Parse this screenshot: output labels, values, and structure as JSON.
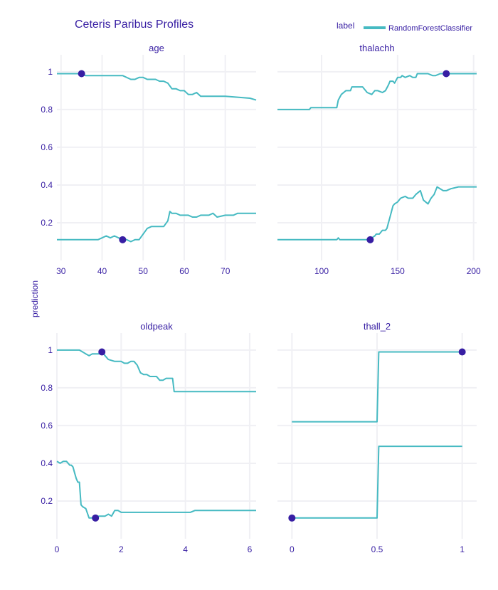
{
  "colors": {
    "text": "#371ea3",
    "line": "#46bac2",
    "point": "#371ea3",
    "grid": "#f0f0f4"
  },
  "chart_data": {
    "type": "line",
    "title": "Ceteris Paribus Profiles",
    "legend": {
      "title": "label",
      "entries": [
        "RandomForestClassifier"
      ],
      "placement": "top-right"
    },
    "ylabel": "prediction",
    "ylim": [
      0,
      1.09
    ],
    "grid": true,
    "panels": [
      {
        "name": "age",
        "xlim": [
          29,
          77.5
        ],
        "xticks": [
          30,
          40,
          50,
          60,
          70
        ],
        "series": [
          {
            "x": [
              29,
              34,
              35,
              36,
              37,
              38,
              39,
              40,
              45,
              47,
              48,
              49,
              50,
              51,
              52,
              53,
              54,
              55,
              56,
              57,
              58,
              59,
              60,
              61,
              62,
              63,
              64,
              65,
              70,
              76,
              77.5
            ],
            "y": [
              0.99,
              0.99,
              0.99,
              0.98,
              0.98,
              0.98,
              0.98,
              0.98,
              0.98,
              0.96,
              0.96,
              0.97,
              0.97,
              0.96,
              0.96,
              0.96,
              0.95,
              0.95,
              0.94,
              0.91,
              0.91,
              0.9,
              0.9,
              0.88,
              0.88,
              0.89,
              0.87,
              0.87,
              0.87,
              0.86,
              0.85
            ]
          },
          {
            "x": [
              29,
              39,
              40,
              41,
              42,
              43,
              44,
              45,
              46,
              47,
              48,
              49,
              50,
              51,
              52,
              53,
              54,
              55,
              56,
              56.5,
              57,
              58,
              59,
              60,
              61,
              62,
              63,
              64,
              65,
              66,
              67,
              68,
              70,
              72,
              73,
              77.5
            ],
            "y": [
              0.11,
              0.11,
              0.12,
              0.13,
              0.12,
              0.13,
              0.12,
              0.11,
              0.11,
              0.1,
              0.11,
              0.11,
              0.14,
              0.17,
              0.18,
              0.18,
              0.18,
              0.18,
              0.21,
              0.26,
              0.25,
              0.25,
              0.24,
              0.24,
              0.24,
              0.23,
              0.23,
              0.24,
              0.24,
              0.24,
              0.25,
              0.23,
              0.24,
              0.24,
              0.25,
              0.25
            ]
          }
        ],
        "points": [
          {
            "x": 35,
            "y": 0.99
          },
          {
            "x": 45,
            "y": 0.11
          }
        ]
      },
      {
        "name": "thalachh",
        "xlim": [
          71,
          202
        ],
        "xticks": [
          100,
          150,
          200
        ],
        "series": [
          {
            "x": [
              71,
              92,
              93,
              103,
              109,
              110,
              111,
              113,
              116,
              119,
              120,
              127,
              128,
              130,
              133,
              135,
              137,
              140,
              142,
              144,
              145,
              147,
              148,
              150,
              152,
              153,
              155,
              158,
              160,
              162,
              163,
              166,
              170,
              173,
              175,
              178,
              182,
              185,
              202
            ],
            "y": [
              0.8,
              0.8,
              0.81,
              0.81,
              0.81,
              0.81,
              0.85,
              0.88,
              0.9,
              0.9,
              0.92,
              0.92,
              0.91,
              0.89,
              0.88,
              0.9,
              0.9,
              0.89,
              0.9,
              0.93,
              0.95,
              0.95,
              0.94,
              0.97,
              0.97,
              0.98,
              0.97,
              0.98,
              0.97,
              0.97,
              0.99,
              0.99,
              0.99,
              0.98,
              0.98,
              0.99,
              0.99,
              0.99,
              0.99
            ]
          },
          {
            "x": [
              71,
              80,
              90,
              100,
              109,
              110,
              111,
              112,
              120,
              125,
              130,
              132,
              133,
              135,
              136,
              138,
              140,
              142,
              143,
              144,
              145,
              147,
              148,
              150,
              152,
              155,
              157,
              160,
              162,
              165,
              167,
              170,
              172,
              174,
              176,
              180,
              182,
              185,
              190,
              195,
              202
            ],
            "y": [
              0.11,
              0.11,
              0.11,
              0.11,
              0.11,
              0.11,
              0.12,
              0.11,
              0.11,
              0.11,
              0.11,
              0.11,
              0.12,
              0.13,
              0.14,
              0.14,
              0.16,
              0.16,
              0.17,
              0.2,
              0.23,
              0.29,
              0.3,
              0.31,
              0.33,
              0.34,
              0.33,
              0.33,
              0.35,
              0.37,
              0.32,
              0.3,
              0.33,
              0.35,
              0.39,
              0.37,
              0.37,
              0.38,
              0.39,
              0.39,
              0.39
            ]
          }
        ],
        "points": [
          {
            "x": 182,
            "y": 0.99
          },
          {
            "x": 132,
            "y": 0.11
          }
        ]
      },
      {
        "name": "oldpeak",
        "xlim": [
          0,
          6.2
        ],
        "xticks": [
          0,
          2,
          4,
          6
        ],
        "series": [
          {
            "x": [
              0,
              0.7,
              0.8,
              0.9,
              1.0,
              1.1,
              1.2,
              1.3,
              1.4,
              1.5,
              1.6,
              1.8,
              2.0,
              2.1,
              2.2,
              2.3,
              2.4,
              2.5,
              2.6,
              2.7,
              2.8,
              2.9,
              3.0,
              3.1,
              3.2,
              3.3,
              3.4,
              3.5,
              3.6,
              3.65,
              4.0,
              5.0,
              6.2
            ],
            "y": [
              1.0,
              1.0,
              0.99,
              0.98,
              0.97,
              0.98,
              0.98,
              0.98,
              0.99,
              0.97,
              0.95,
              0.94,
              0.94,
              0.93,
              0.93,
              0.94,
              0.94,
              0.92,
              0.88,
              0.87,
              0.87,
              0.86,
              0.86,
              0.86,
              0.84,
              0.84,
              0.85,
              0.85,
              0.85,
              0.78,
              0.78,
              0.78,
              0.78
            ]
          },
          {
            "x": [
              0,
              0.1,
              0.2,
              0.3,
              0.4,
              0.45,
              0.5,
              0.55,
              0.6,
              0.65,
              0.7,
              0.75,
              0.8,
              0.9,
              1.0,
              1.2,
              1.3,
              1.5,
              1.6,
              1.7,
              1.8,
              1.9,
              2.0,
              2.5,
              3.0,
              3.5,
              4.0,
              4.15,
              4.3,
              5.0,
              6.2
            ],
            "y": [
              0.41,
              0.4,
              0.41,
              0.41,
              0.39,
              0.39,
              0.38,
              0.35,
              0.32,
              0.3,
              0.3,
              0.18,
              0.17,
              0.16,
              0.11,
              0.11,
              0.12,
              0.12,
              0.13,
              0.12,
              0.15,
              0.15,
              0.14,
              0.14,
              0.14,
              0.14,
              0.14,
              0.14,
              0.15,
              0.15,
              0.15
            ]
          }
        ],
        "points": [
          {
            "x": 1.4,
            "y": 0.99
          },
          {
            "x": 1.2,
            "y": 0.11
          }
        ]
      },
      {
        "name": "thall_2",
        "xlim": [
          -0.085,
          1.085
        ],
        "xticks": [
          0,
          0.5,
          1
        ],
        "xtick_labels": [
          "0",
          "0.5",
          "1"
        ],
        "series": [
          {
            "x": [
              0,
              0.5,
              0.51,
              1
            ],
            "y": [
              0.62,
              0.62,
              0.99,
              0.99
            ]
          },
          {
            "x": [
              0,
              0.5,
              0.51,
              1
            ],
            "y": [
              0.11,
              0.11,
              0.49,
              0.49
            ]
          }
        ],
        "points": [
          {
            "x": 1,
            "y": 0.99
          },
          {
            "x": 0,
            "y": 0.11
          }
        ]
      }
    ],
    "yticks": [
      0.2,
      0.4,
      0.6,
      0.8,
      1
    ],
    "ytick_labels": [
      "0.2",
      "0.4",
      "0.6",
      "0.8",
      "1"
    ]
  }
}
